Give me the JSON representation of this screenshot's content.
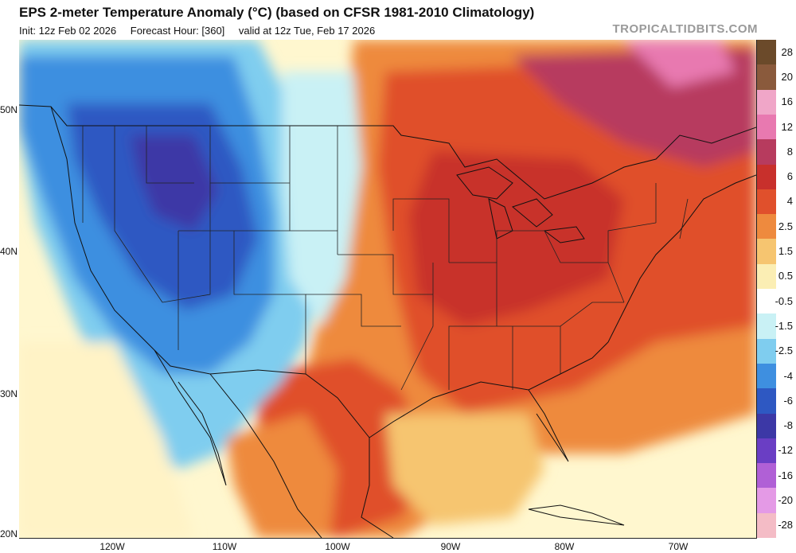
{
  "header": {
    "title": "EPS 2-meter Temperature Anomaly (°C) (based on CFSR 1981-2010 Climatology)",
    "init": "Init: 12z Feb 02 2026",
    "forecast_hour": "Forecast Hour: [360]",
    "valid": "valid at 12z Tue, Feb 17 2026",
    "brand": "TROPICALTIDBITS.COM"
  },
  "axes": {
    "lat": [
      {
        "label": "50N"
      },
      {
        "label": "40N"
      },
      {
        "label": "30N"
      },
      {
        "label": "20N"
      }
    ],
    "lon": [
      {
        "label": "120W"
      },
      {
        "label": "110W"
      },
      {
        "label": "100W"
      },
      {
        "label": "90W"
      },
      {
        "label": "80W"
      },
      {
        "label": "70W"
      }
    ]
  },
  "legend": {
    "items": [
      {
        "label": "28",
        "color": "#6b4a2a"
      },
      {
        "label": "20",
        "color": "#8a5a3c"
      },
      {
        "label": "16",
        "color": "#f0a6c8"
      },
      {
        "label": "12",
        "color": "#e879b0"
      },
      {
        "label": "8",
        "color": "#b73b5e"
      },
      {
        "label": "6",
        "color": "#c8302c"
      },
      {
        "label": "4",
        "color": "#e0502c"
      },
      {
        "label": "2.5",
        "color": "#ee8a3e"
      },
      {
        "label": "1.5",
        "color": "#f6c570"
      },
      {
        "label": "0.5",
        "color": "#fbeeb4"
      },
      {
        "label": "-0.5",
        "color": "#ffffff"
      },
      {
        "label": "-1.5",
        "color": "#c9f1f5"
      },
      {
        "label": "-2.5",
        "color": "#7fcdef"
      },
      {
        "label": "-4",
        "color": "#3e8fe0"
      },
      {
        "label": "-6",
        "color": "#2e58c2"
      },
      {
        "label": "-8",
        "color": "#3c38a6"
      },
      {
        "label": "-12",
        "color": "#6a3ec4"
      },
      {
        "label": "-16",
        "color": "#b060d6"
      },
      {
        "label": "-20",
        "color": "#e49ae6"
      },
      {
        "label": "-28",
        "color": "#f4bcc6"
      }
    ]
  }
}
